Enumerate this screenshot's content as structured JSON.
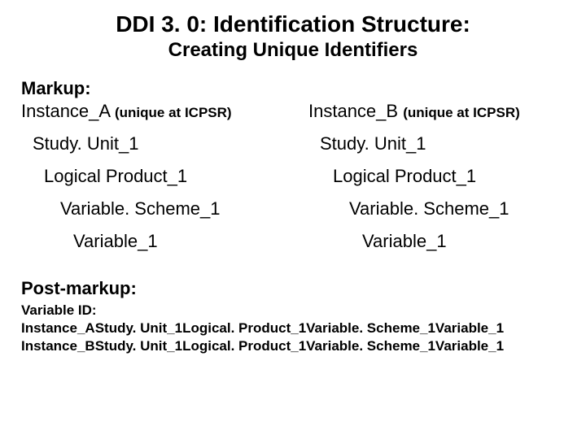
{
  "title": "DDI 3. 0: Identification Structure:",
  "subtitle": "Creating Unique Identifiers",
  "markup_label": "Markup:",
  "columns": {
    "a": {
      "instance": "Instance_A",
      "instance_note": "(unique at ICPSR)",
      "levels": [
        "Study. Unit_1",
        "Logical Product_1",
        "Variable. Scheme_1",
        "Variable_1"
      ]
    },
    "b": {
      "instance": "Instance_B",
      "instance_note": "(unique at ICPSR)",
      "levels": [
        "Study. Unit_1",
        "Logical Product_1",
        "Variable. Scheme_1",
        "Variable_1"
      ]
    }
  },
  "post_label": "Post-markup:",
  "variable_id_label": "Variable ID:",
  "ids": [
    "Instance_AStudy. Unit_1Logical. Product_1Variable. Scheme_1Variable_1",
    "Instance_BStudy. Unit_1Logical. Product_1Variable. Scheme_1Variable_1"
  ]
}
